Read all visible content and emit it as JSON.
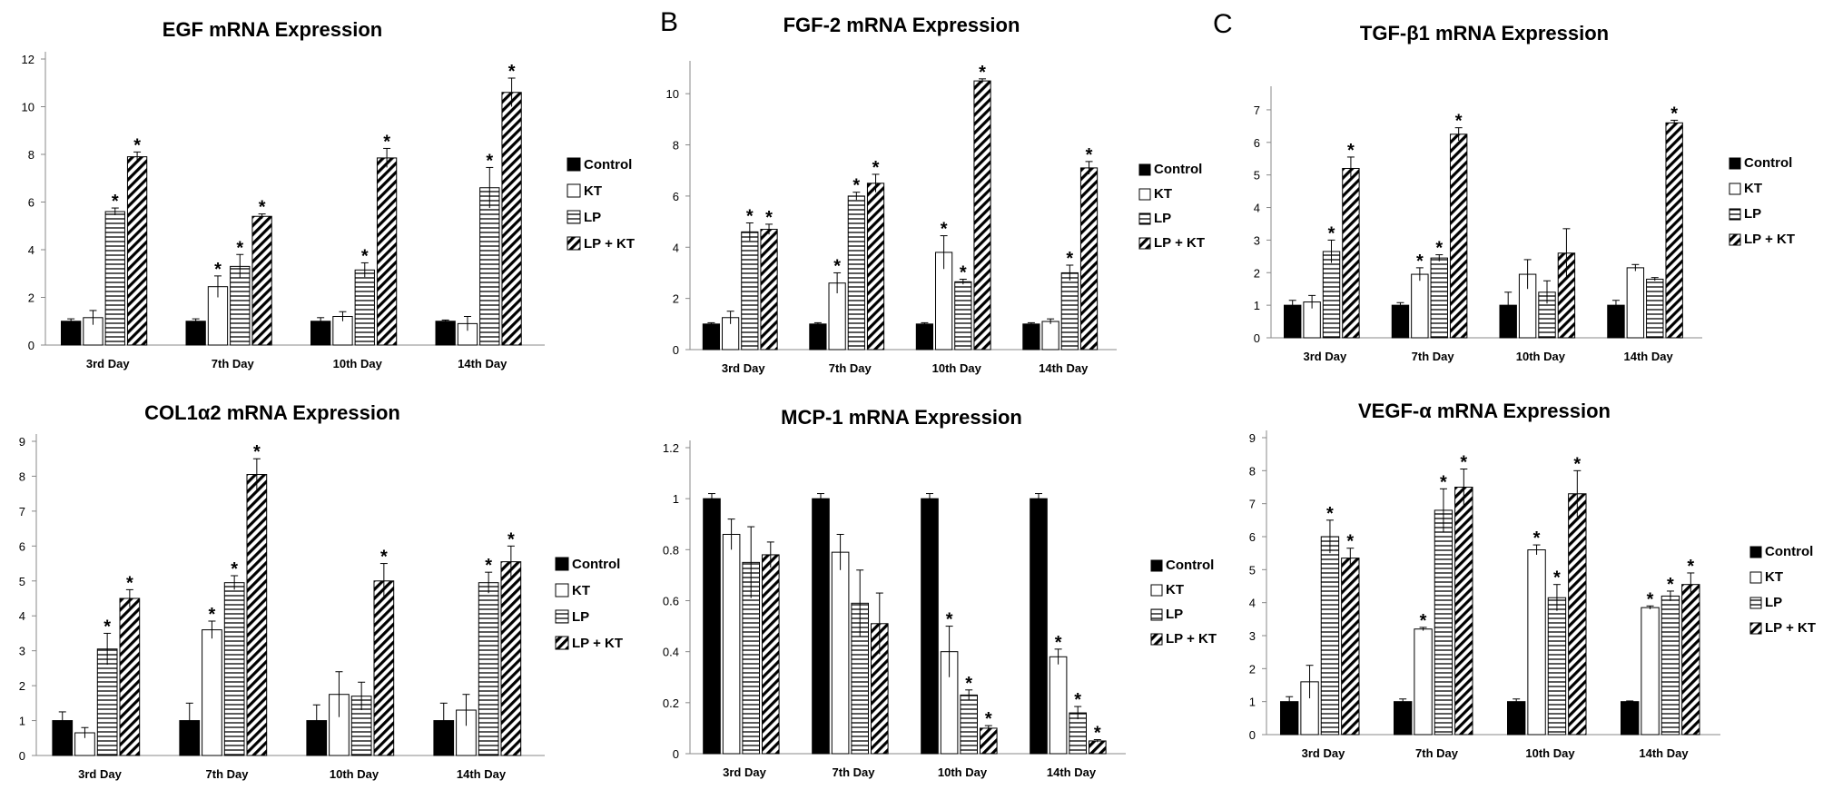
{
  "panel_labels": [
    "B",
    "C"
  ],
  "chart_data": [
    {
      "id": "egf",
      "type": "bar",
      "title": "EGF mRNA Expression",
      "categories": [
        "3rd Day",
        "7th Day",
        "10th Day",
        "14th Day"
      ],
      "ylim": [
        0,
        12
      ],
      "yticks": [
        0,
        2,
        4,
        6,
        8,
        10,
        12
      ],
      "series": [
        {
          "name": "Control",
          "values": [
            1.0,
            1.0,
            1.0,
            1.0
          ],
          "errors": [
            0.1,
            0.1,
            0.15,
            0.05
          ],
          "sig": [
            false,
            false,
            false,
            false
          ]
        },
        {
          "name": "KT",
          "values": [
            1.15,
            2.45,
            1.2,
            0.9
          ],
          "errors": [
            0.3,
            0.45,
            0.2,
            0.3
          ],
          "sig": [
            false,
            true,
            false,
            false
          ]
        },
        {
          "name": "LP",
          "values": [
            5.6,
            3.3,
            3.15,
            6.6
          ],
          "errors": [
            0.15,
            0.5,
            0.3,
            0.85
          ],
          "sig": [
            true,
            true,
            true,
            true
          ]
        },
        {
          "name": "LP + KT",
          "values": [
            7.9,
            5.4,
            7.85,
            10.6
          ],
          "errors": [
            0.2,
            0.1,
            0.4,
            0.6
          ],
          "sig": [
            true,
            true,
            true,
            true
          ]
        }
      ]
    },
    {
      "id": "fgf2",
      "type": "bar",
      "title": "FGF-2 mRNA Expression",
      "categories": [
        "3rd Day",
        "7th Day",
        "10th Day",
        "14th Day"
      ],
      "ylim": [
        0,
        11
      ],
      "yticks": [
        0,
        2,
        4,
        6,
        8,
        10
      ],
      "series": [
        {
          "name": "Control",
          "values": [
            1.0,
            1.0,
            1.0,
            1.0
          ],
          "errors": [
            0.05,
            0.05,
            0.05,
            0.05
          ],
          "sig": [
            false,
            false,
            false,
            false
          ]
        },
        {
          "name": "KT",
          "values": [
            1.25,
            2.6,
            3.8,
            1.1
          ],
          "errors": [
            0.25,
            0.4,
            0.65,
            0.1
          ],
          "sig": [
            false,
            true,
            true,
            false
          ]
        },
        {
          "name": "LP",
          "values": [
            4.6,
            6.0,
            2.65,
            3.0
          ],
          "errors": [
            0.35,
            0.15,
            0.1,
            0.3
          ],
          "sig": [
            true,
            true,
            true,
            true
          ]
        },
        {
          "name": "LP + KT",
          "values": [
            4.7,
            6.5,
            10.5,
            7.1
          ],
          "errors": [
            0.2,
            0.35,
            0.08,
            0.25
          ],
          "sig": [
            true,
            true,
            true,
            true
          ]
        }
      ]
    },
    {
      "id": "tgfb1",
      "type": "bar",
      "title": "TGF-β1 mRNA Expression",
      "categories": [
        "3rd Day",
        "7th Day",
        "10th Day",
        "14th Day"
      ],
      "ylim": [
        0,
        7.5
      ],
      "yticks": [
        0,
        1,
        2,
        3,
        4,
        5,
        6,
        7
      ],
      "series": [
        {
          "name": "Control",
          "values": [
            1.0,
            1.0,
            1.0,
            1.0
          ],
          "errors": [
            0.15,
            0.08,
            0.4,
            0.15
          ],
          "sig": [
            false,
            false,
            false,
            false
          ]
        },
        {
          "name": "KT",
          "values": [
            1.1,
            1.95,
            1.95,
            2.15
          ],
          "errors": [
            0.2,
            0.2,
            0.45,
            0.1
          ],
          "sig": [
            false,
            true,
            false,
            false
          ]
        },
        {
          "name": "LP",
          "values": [
            2.65,
            2.45,
            1.4,
            1.8
          ],
          "errors": [
            0.35,
            0.1,
            0.35,
            0.05
          ],
          "sig": [
            true,
            true,
            false,
            false
          ]
        },
        {
          "name": "LP + KT",
          "values": [
            5.2,
            6.25,
            2.6,
            6.6
          ],
          "errors": [
            0.35,
            0.2,
            0.75,
            0.08
          ],
          "sig": [
            true,
            true,
            false,
            true
          ]
        }
      ]
    },
    {
      "id": "col1a2",
      "type": "bar",
      "title": "COL1α2 mRNA Expression",
      "categories": [
        "3rd Day",
        "7th Day",
        "10th Day",
        "14th Day"
      ],
      "ylim": [
        0,
        9
      ],
      "yticks": [
        0,
        1,
        2,
        3,
        4,
        5,
        6,
        7,
        8,
        9
      ],
      "series": [
        {
          "name": "Control",
          "values": [
            1.0,
            1.0,
            1.0,
            1.0
          ],
          "errors": [
            0.25,
            0.5,
            0.45,
            0.5
          ],
          "sig": [
            false,
            false,
            false,
            false
          ]
        },
        {
          "name": "KT",
          "values": [
            0.65,
            3.6,
            1.75,
            1.3
          ],
          "errors": [
            0.15,
            0.25,
            0.65,
            0.45
          ],
          "sig": [
            false,
            true,
            false,
            false
          ]
        },
        {
          "name": "LP",
          "values": [
            3.05,
            4.95,
            1.7,
            4.95
          ],
          "errors": [
            0.45,
            0.2,
            0.4,
            0.3
          ],
          "sig": [
            true,
            true,
            false,
            true
          ]
        },
        {
          "name": "LP + KT",
          "values": [
            4.5,
            8.05,
            5.0,
            5.55
          ],
          "errors": [
            0.25,
            0.45,
            0.5,
            0.45
          ],
          "sig": [
            true,
            true,
            true,
            true
          ]
        }
      ]
    },
    {
      "id": "mcp1",
      "type": "bar",
      "title": "MCP-1 mRNA Expression",
      "categories": [
        "3rd Day",
        "7th Day",
        "10th Day",
        "14th Day"
      ],
      "ylim": [
        0,
        1.2
      ],
      "yticks": [
        0,
        0.2,
        0.4,
        0.6,
        0.8,
        1,
        1.2
      ],
      "series": [
        {
          "name": "Control",
          "values": [
            1.0,
            1.0,
            1.0,
            1.0
          ],
          "errors": [
            0.02,
            0.02,
            0.02,
            0.02
          ],
          "sig": [
            false,
            false,
            false,
            false
          ]
        },
        {
          "name": "KT",
          "values": [
            0.86,
            0.79,
            0.4,
            0.38
          ],
          "errors": [
            0.06,
            0.07,
            0.1,
            0.03
          ],
          "sig": [
            false,
            false,
            true,
            true
          ]
        },
        {
          "name": "LP",
          "values": [
            0.75,
            0.59,
            0.23,
            0.16
          ],
          "errors": [
            0.14,
            0.13,
            0.02,
            0.025
          ],
          "sig": [
            false,
            false,
            true,
            true
          ]
        },
        {
          "name": "LP + KT",
          "values": [
            0.78,
            0.51,
            0.1,
            0.05
          ],
          "errors": [
            0.05,
            0.12,
            0.01,
            0.005
          ],
          "sig": [
            false,
            false,
            true,
            true
          ]
        }
      ]
    },
    {
      "id": "vegfa",
      "type": "bar",
      "title": "VEGF-α mRNA Expression",
      "categories": [
        "3rd Day",
        "7th Day",
        "10th Day",
        "14th Day"
      ],
      "ylim": [
        0,
        9
      ],
      "yticks": [
        0,
        1,
        2,
        3,
        4,
        5,
        6,
        7,
        8,
        9
      ],
      "series": [
        {
          "name": "Control",
          "values": [
            1.0,
            1.0,
            1.0,
            1.0
          ],
          "errors": [
            0.15,
            0.08,
            0.08,
            0.02
          ],
          "sig": [
            false,
            false,
            false,
            false
          ]
        },
        {
          "name": "KT",
          "values": [
            1.6,
            3.2,
            5.6,
            3.85
          ],
          "errors": [
            0.5,
            0.05,
            0.15,
            0.05
          ],
          "sig": [
            false,
            true,
            true,
            true
          ]
        },
        {
          "name": "LP",
          "values": [
            6.0,
            6.8,
            4.15,
            4.2
          ],
          "errors": [
            0.5,
            0.65,
            0.4,
            0.15
          ],
          "sig": [
            true,
            true,
            true,
            true
          ]
        },
        {
          "name": "LP + KT",
          "values": [
            5.35,
            7.5,
            7.3,
            4.55
          ],
          "errors": [
            0.3,
            0.55,
            0.7,
            0.35
          ],
          "sig": [
            true,
            true,
            true,
            true
          ]
        }
      ]
    }
  ]
}
